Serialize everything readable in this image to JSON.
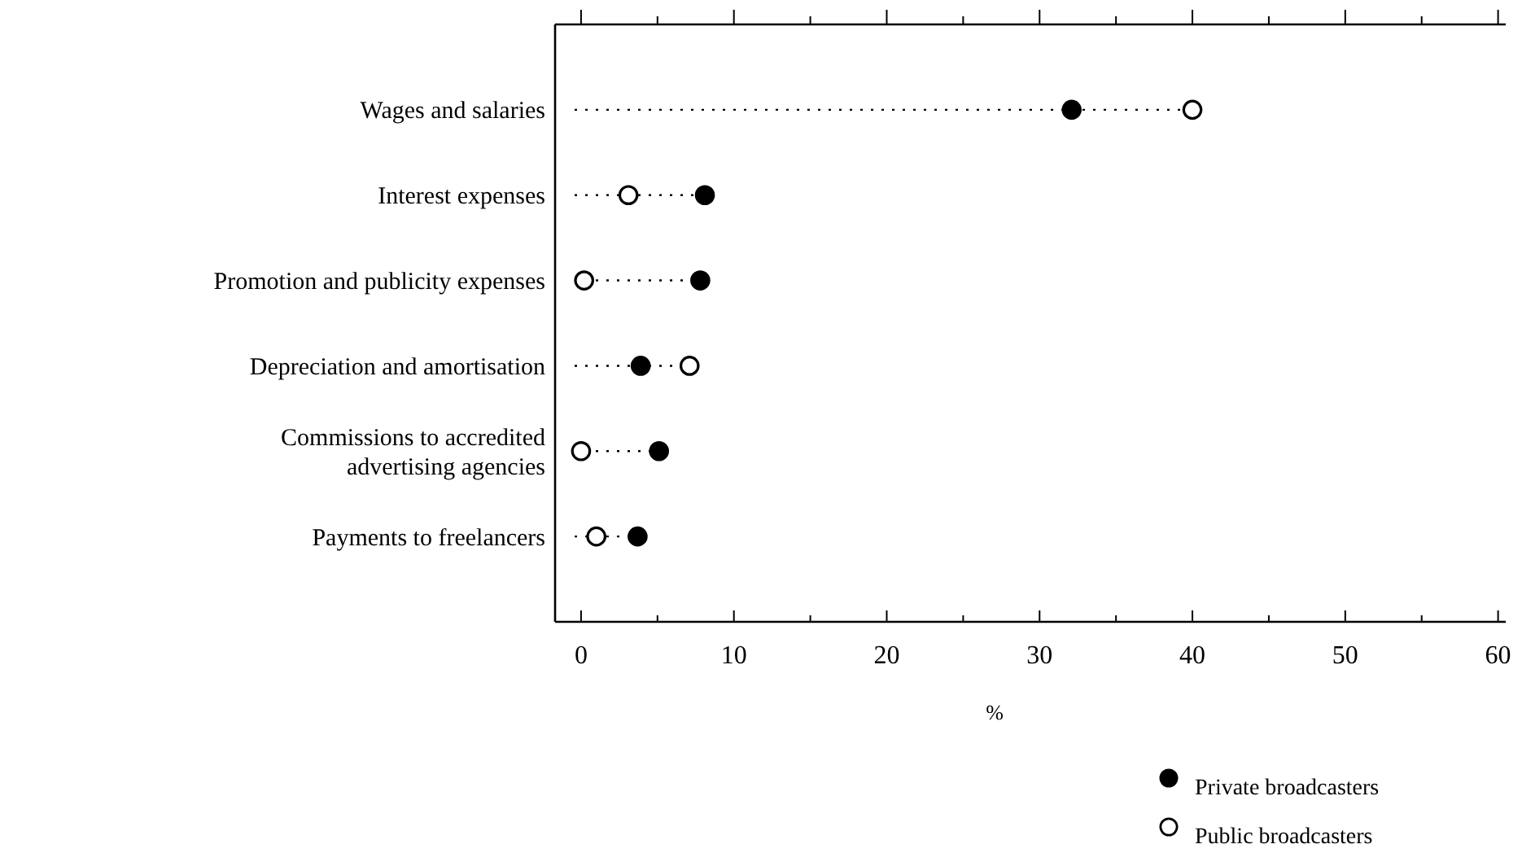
{
  "chart_data": {
    "type": "scatter",
    "orientation": "horizontal",
    "xlabel": "%",
    "categories": [
      "Wages and salaries",
      "Interest expenses",
      "Promotion and publicity expenses",
      "Depreciation and amortisation",
      "Commissions to accredited advertising agencies",
      "Payments to freelancers"
    ],
    "series": [
      {
        "name": "Private broadcasters",
        "color": "#000000",
        "values": [
          32.1,
          8.1,
          7.8,
          3.9,
          5.1,
          3.7
        ]
      },
      {
        "name": "Public broadcasters",
        "color": "#ffffff",
        "values": [
          40,
          3.1,
          0.2,
          7.1,
          0,
          1.0
        ]
      }
    ],
    "xlim": [
      -1.7,
      60.5
    ],
    "xticks": [
      0,
      {
        "value": 5,
        "label": null
      },
      10,
      {
        "value": 15,
        "label": null
      },
      20,
      {
        "value": 25,
        "label": null
      },
      30,
      {
        "value": 35,
        "label": null
      },
      40,
      {
        "value": 45,
        "label": null
      },
      50,
      {
        "value": 55,
        "label": null
      },
      60
    ],
    "marker": "circle",
    "line_style": "dotted",
    "legend": "bottom right",
    "grid": false
  }
}
